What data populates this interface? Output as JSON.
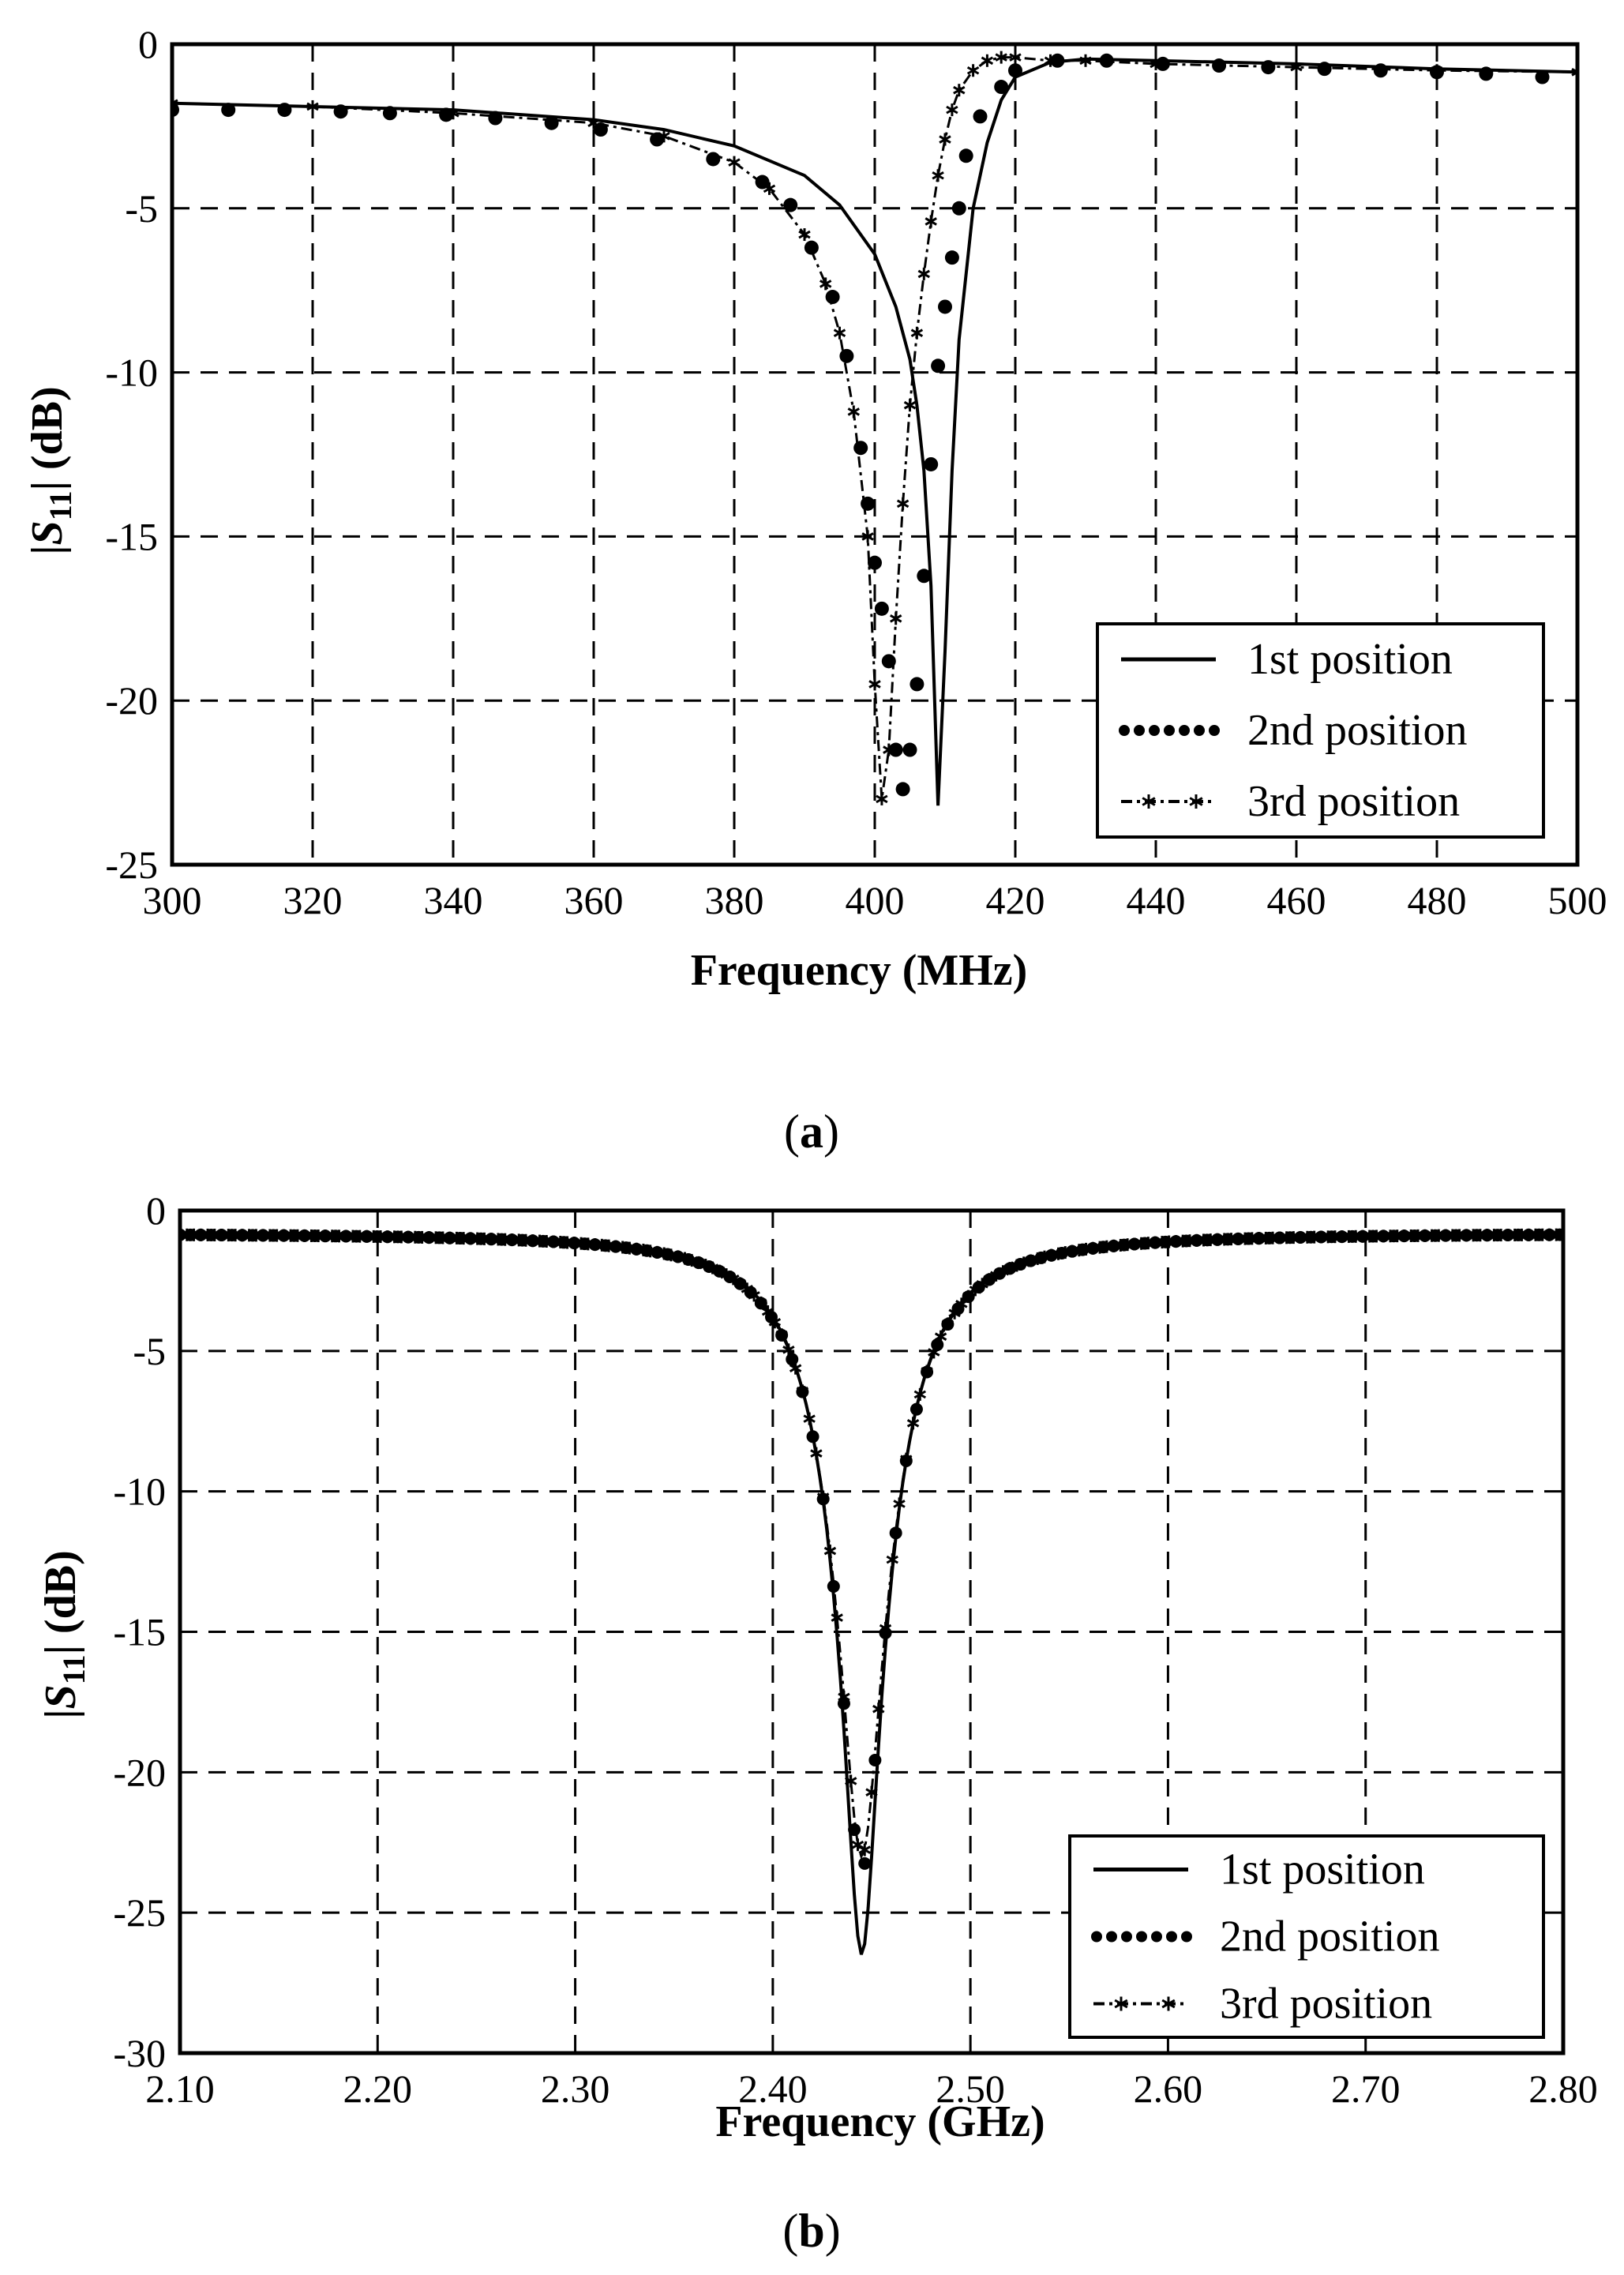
{
  "chart_data": [
    {
      "type": "line",
      "panel_label": "(a)",
      "panel_label_parts": {
        "open": "(",
        "letter": "a",
        "close": ")"
      },
      "xlabel": "Frequency (MHz)",
      "ylabel_parts": {
        "prefix": "|",
        "symbol": "S",
        "subscript": "11",
        "suffix": "|  (dB)"
      },
      "xlim": [
        300,
        500
      ],
      "ylim": [
        -25,
        0
      ],
      "xticks": [
        300,
        320,
        340,
        360,
        380,
        400,
        420,
        440,
        460,
        480,
        500
      ],
      "xtick_labels": [
        "300",
        "320",
        "340",
        "360",
        "380",
        "400",
        "420",
        "440",
        "460",
        "480",
        "500"
      ],
      "yticks": [
        0,
        -5,
        -10,
        -15,
        -20,
        -25
      ],
      "ytick_labels": [
        "0",
        "-5",
        "-10",
        "-15",
        "-20",
        "-25"
      ],
      "grid": true,
      "legend_position": "bottom-right",
      "series": [
        {
          "name": "1st position",
          "style": "solid",
          "x": [
            300,
            320,
            340,
            360,
            370,
            380,
            390,
            395,
            400,
            403,
            405,
            406,
            407,
            408,
            409,
            410,
            411,
            412,
            414,
            416,
            418,
            420,
            425,
            430,
            440,
            460,
            480,
            500
          ],
          "y": [
            -1.8,
            -1.9,
            -2.0,
            -2.3,
            -2.6,
            -3.1,
            -4.0,
            -4.9,
            -6.4,
            -8.0,
            -9.6,
            -11.0,
            -13.0,
            -16.5,
            -23.2,
            -18.5,
            -13.0,
            -9.0,
            -5.0,
            -3.0,
            -1.7,
            -1.0,
            -0.55,
            -0.45,
            -0.5,
            -0.6,
            -0.75,
            -0.85
          ]
        },
        {
          "name": "2nd position",
          "style": "dotted-circles",
          "x": [
            300,
            308,
            316,
            324,
            331,
            339,
            346,
            354,
            361,
            369,
            377,
            384,
            388,
            391,
            394,
            396,
            398,
            399,
            400,
            401,
            402,
            403,
            404,
            405,
            406,
            407,
            408,
            409,
            410,
            411,
            412,
            413,
            415,
            418,
            420,
            426,
            433,
            441,
            449,
            456,
            464,
            472,
            480,
            487,
            495
          ],
          "y": [
            -2.0,
            -2.0,
            -2.0,
            -2.05,
            -2.1,
            -2.15,
            -2.25,
            -2.4,
            -2.6,
            -2.9,
            -3.5,
            -4.2,
            -4.9,
            -6.2,
            -7.7,
            -9.5,
            -12.3,
            -14.0,
            -15.8,
            -17.2,
            -18.8,
            -21.5,
            -22.7,
            -21.5,
            -19.5,
            -16.2,
            -12.8,
            -9.8,
            -8.0,
            -6.5,
            -5.0,
            -3.4,
            -2.2,
            -1.3,
            -0.8,
            -0.5,
            -0.5,
            -0.6,
            -0.65,
            -0.7,
            -0.75,
            -0.8,
            -0.85,
            -0.9,
            -1.0
          ]
        },
        {
          "name": "3rd position",
          "style": "dash-dot-asterisk",
          "x": [
            300,
            320,
            340,
            360,
            370,
            380,
            385,
            390,
            393,
            395,
            397,
            399,
            400,
            401,
            402,
            403,
            404,
            405,
            406,
            407,
            408,
            409,
            410,
            411,
            412,
            414,
            416,
            418,
            420,
            425,
            430,
            440,
            460,
            480,
            500
          ],
          "y": [
            -1.8,
            -1.9,
            -2.1,
            -2.4,
            -2.8,
            -3.6,
            -4.4,
            -5.8,
            -7.3,
            -8.8,
            -11.2,
            -15.0,
            -19.5,
            -23.0,
            -21.5,
            -17.5,
            -14.0,
            -11.0,
            -8.8,
            -7.0,
            -5.4,
            -4.0,
            -2.9,
            -2.0,
            -1.4,
            -0.8,
            -0.5,
            -0.4,
            -0.4,
            -0.5,
            -0.5,
            -0.6,
            -0.7,
            -0.8,
            -0.85
          ]
        }
      ]
    },
    {
      "type": "line",
      "panel_label": "(b)",
      "panel_label_parts": {
        "open": "(",
        "letter": "b",
        "close": ")"
      },
      "xlabel": "Frequency (GHz)",
      "ylabel_parts": {
        "prefix": "|",
        "symbol": "S",
        "subscript": "11",
        "suffix": "|  (dB)"
      },
      "xlim": [
        2.1,
        2.8
      ],
      "ylim": [
        -30,
        0
      ],
      "xticks": [
        2.1,
        2.2,
        2.3,
        2.4,
        2.5,
        2.6,
        2.7,
        2.8
      ],
      "xtick_labels": [
        "2.10",
        "2.20",
        "2.30",
        "2.40",
        "2.50",
        "2.60",
        "2.70",
        "2.80"
      ],
      "yticks": [
        0,
        -5,
        -10,
        -15,
        -20,
        -25,
        -30
      ],
      "ytick_labels": [
        "0",
        "-5",
        "-10",
        "-15",
        "-20",
        "-25",
        "-30"
      ],
      "grid": true,
      "legend_position": "bottom-right",
      "series": [
        {
          "name": "1st position",
          "style": "solid",
          "resonance": {
            "f0": 2.445,
            "min_db": -26.5,
            "width": 0.03,
            "base_db": -0.8
          }
        },
        {
          "name": "2nd position",
          "style": "dotted-circles",
          "resonance": {
            "f0": 2.445,
            "min_db": -23.5,
            "width": 0.031,
            "base_db": -0.8
          }
        },
        {
          "name": "3rd position",
          "style": "dash-dot-asterisk",
          "resonance": {
            "f0": 2.445,
            "min_db": -23.0,
            "width": 0.031,
            "base_db": -0.8
          }
        }
      ]
    }
  ]
}
